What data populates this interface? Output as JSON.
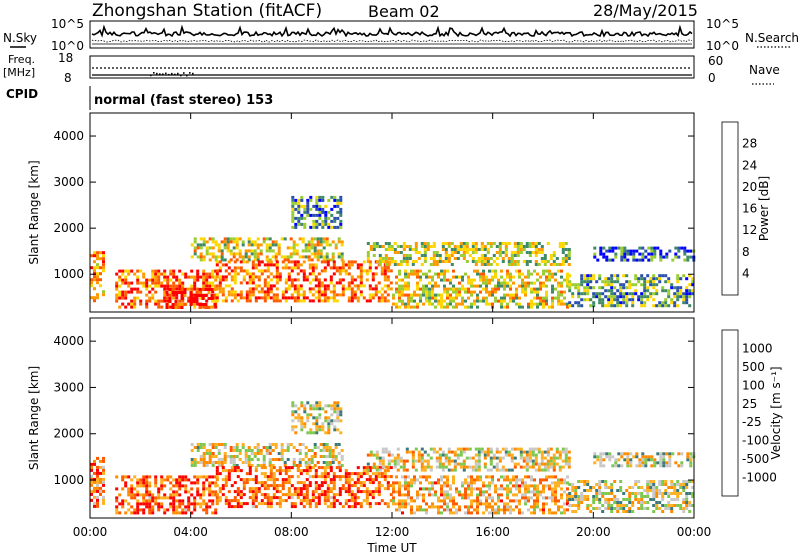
{
  "header": {
    "station": "Zhongshan Station (fitACF)",
    "beam": "Beam 02",
    "date": "28/May/2015"
  },
  "top_panels": {
    "nsky_label": "N.Sky",
    "nsky_ticks": [
      "10^5",
      "10^0"
    ],
    "nsearch_label": "N.Search",
    "nsearch_ticks": [
      "10^5",
      "10^0"
    ],
    "freq_label": "Freq.",
    "freq_unit": "[MHz]",
    "freq_ticks": [
      "18",
      "8"
    ],
    "nave_label": "Nave",
    "nave_ticks": [
      "60",
      "0"
    ],
    "cpid_label": "CPID",
    "cpid_value": "normal (fast stereo) 153"
  },
  "chart_data": [
    {
      "type": "heatmap",
      "parameter": "Power",
      "ylabel": "Slant Range [km]",
      "xlabel": "Time UT",
      "x_ticks": [
        "00:00",
        "04:00",
        "08:00",
        "12:00",
        "16:00",
        "20:00",
        "00:00"
      ],
      "xlim_hours": [
        0,
        24
      ],
      "y_ticks": [
        1000,
        2000,
        3000,
        4000
      ],
      "ylim": [
        180,
        4500
      ],
      "colorbar_label": "Power [dB]",
      "colorbar_ticks": [
        "28",
        "24",
        "20",
        "16",
        "12",
        "8",
        "4"
      ],
      "colorbar_colors": [
        "#0000ff",
        "#2a4fae",
        "#3e8a66",
        "#9acd32",
        "#ffd700",
        "#ff9900",
        "#ff5a00",
        "#ff0000"
      ],
      "echo_regions": [
        {
          "t0": 0.0,
          "t1": 0.5,
          "r0": 400,
          "r1": 1500,
          "level": 0.7
        },
        {
          "t0": 1.0,
          "t1": 5.0,
          "r0": 300,
          "r1": 1100,
          "level": 0.8
        },
        {
          "t0": 3.0,
          "t1": 5.0,
          "r0": 300,
          "r1": 700,
          "level": 0.95
        },
        {
          "t0": 4.0,
          "t1": 10.0,
          "r0": 1300,
          "r1": 1800,
          "level": 0.55
        },
        {
          "t0": 5.0,
          "t1": 12.0,
          "r0": 400,
          "r1": 1300,
          "level": 0.75
        },
        {
          "t0": 8.0,
          "t1": 10.0,
          "r0": 2000,
          "r1": 2700,
          "level": 0.3
        },
        {
          "t0": 11.0,
          "t1": 19.0,
          "r0": 1200,
          "r1": 1700,
          "level": 0.5
        },
        {
          "t0": 12.0,
          "t1": 19.0,
          "r0": 300,
          "r1": 1100,
          "level": 0.55
        },
        {
          "t0": 19.0,
          "t1": 24.0,
          "r0": 300,
          "r1": 1000,
          "level": 0.35
        },
        {
          "t0": 20.0,
          "t1": 24.0,
          "r0": 1300,
          "r1": 1600,
          "level": 0.2
        }
      ]
    },
    {
      "type": "heatmap",
      "parameter": "Velocity",
      "ylabel": "Slant Range [km]",
      "xlabel": "Time UT",
      "x_ticks": [
        "00:00",
        "04:00",
        "08:00",
        "12:00",
        "16:00",
        "20:00",
        "00:00"
      ],
      "xlim_hours": [
        0,
        24
      ],
      "y_ticks": [
        1000,
        2000,
        3000,
        4000
      ],
      "ylim": [
        180,
        4500
      ],
      "colorbar_label": "Velocity [m s⁻¹]",
      "colorbar_ticks": [
        "1000",
        "500",
        "100",
        "25",
        "-25",
        "-100",
        "-500",
        "-1000"
      ],
      "colorbar_colors": [
        "#ff0000",
        "#ff5a00",
        "#ff8c00",
        "#ffb020",
        "#c8c8c8",
        "#7dc850",
        "#3c7a7a",
        "#2a4fae",
        "#0000ff"
      ],
      "echo_regions": [
        {
          "t0": 0.0,
          "t1": 0.5,
          "r0": 400,
          "r1": 1500,
          "level": 0.25
        },
        {
          "t0": 1.0,
          "t1": 5.0,
          "r0": 300,
          "r1": 1100,
          "level": 0.2
        },
        {
          "t0": 4.0,
          "t1": 10.0,
          "r0": 1300,
          "r1": 1800,
          "level": 0.45
        },
        {
          "t0": 5.0,
          "t1": 12.0,
          "r0": 400,
          "r1": 1300,
          "level": 0.2
        },
        {
          "t0": 8.0,
          "t1": 10.0,
          "r0": 2000,
          "r1": 2700,
          "level": 0.5
        },
        {
          "t0": 11.0,
          "t1": 19.0,
          "r0": 1200,
          "r1": 1700,
          "level": 0.45
        },
        {
          "t0": 12.0,
          "t1": 19.0,
          "r0": 300,
          "r1": 1100,
          "level": 0.35
        },
        {
          "t0": 19.0,
          "t1": 24.0,
          "r0": 300,
          "r1": 1000,
          "level": 0.5
        },
        {
          "t0": 20.0,
          "t1": 24.0,
          "r0": 1300,
          "r1": 1600,
          "level": 0.5
        }
      ]
    }
  ]
}
